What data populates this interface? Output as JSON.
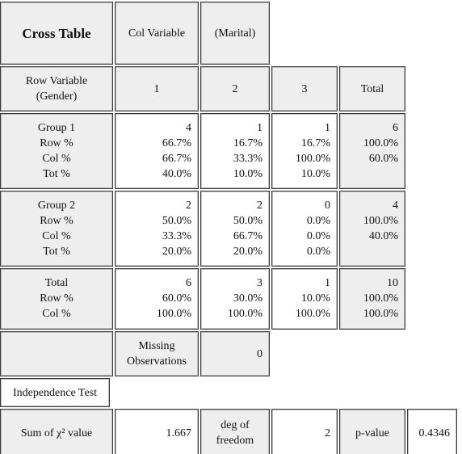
{
  "title": "Cross Table",
  "col_variable": "Col Variable",
  "col_variable_name": "(Marital)",
  "row_variable": [
    "Row Variable",
    "(Gender)"
  ],
  "columns": [
    "1",
    "2",
    "3",
    "Total"
  ],
  "groups": [
    {
      "labels": [
        "Group 1",
        "Row %",
        "Col %",
        "Tot %"
      ],
      "cells": [
        [
          "4",
          "66.7%",
          "66.7%",
          "40.0%"
        ],
        [
          "1",
          "16.7%",
          "33.3%",
          "10.0%"
        ],
        [
          "1",
          "16.7%",
          "100.0%",
          "10.0%"
        ],
        [
          "6",
          "100.0%",
          "60.0%"
        ]
      ]
    },
    {
      "labels": [
        "Group 2",
        "Row %",
        "Col %",
        "Tot %"
      ],
      "cells": [
        [
          "2",
          "50.0%",
          "33.3%",
          "20.0%"
        ],
        [
          "2",
          "50.0%",
          "66.7%",
          "20.0%"
        ],
        [
          "0",
          "0.0%",
          "0.0%",
          "0.0%"
        ],
        [
          "4",
          "100.0%",
          "40.0%"
        ]
      ]
    },
    {
      "labels": [
        "Total",
        "Row %",
        "Col %"
      ],
      "cells": [
        [
          "6",
          "60.0%",
          "100.0%"
        ],
        [
          "3",
          "30.0%",
          "100.0%"
        ],
        [
          "1",
          "10.0%",
          "100.0%"
        ],
        [
          "10",
          "100.0%",
          "100.0%"
        ]
      ]
    }
  ],
  "missing_label": [
    "Missing",
    "Observations"
  ],
  "missing_value": "0",
  "independence_test": "Independence Test",
  "chi_square_label": "Sum of χ² value",
  "chi_square_value": "1.667",
  "df_label": [
    "deg of",
    "freedom"
  ],
  "df_value": "2",
  "p_label": "p-value",
  "p_value": "0.4346"
}
